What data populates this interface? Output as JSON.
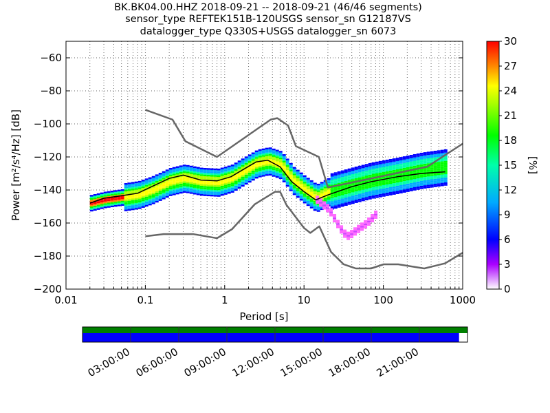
{
  "title": {
    "line1": "BK.BK04.00.HHZ   2018-09-21 -- 2018-09-21  (46/46 segments)",
    "line2": "sensor_type REFTEK151B-120USGS sensor_sn G12187VS",
    "line3": "datalogger_type Q330S+USGS datalogger_sn 6073"
  },
  "chart_data": {
    "type": "heatmap",
    "xlabel": "Period [s]",
    "ylabel": "Power [m²/s⁴/Hz] [dB]",
    "x_scale": "log",
    "xlim": [
      0.01,
      1000
    ],
    "ylim": [
      -200,
      -50
    ],
    "x_ticks": [
      0.01,
      0.1,
      1,
      10,
      100,
      1000
    ],
    "x_tick_labels": [
      "0.01",
      "0.1",
      "1",
      "10",
      "100",
      "1000"
    ],
    "y_ticks": [
      -200,
      -180,
      -160,
      -140,
      -120,
      -100,
      -80,
      -60
    ],
    "grid": true,
    "colorbar": {
      "label": "[%]",
      "range": [
        0,
        30
      ],
      "ticks": [
        0,
        3,
        6,
        9,
        12,
        15,
        18,
        21,
        24,
        27,
        30
      ]
    },
    "noise_models": [
      {
        "name": "NHNM",
        "points": [
          [
            0.1,
            -91.5
          ],
          [
            0.22,
            -97.4
          ],
          [
            0.32,
            -110.5
          ],
          [
            0.8,
            -120
          ],
          [
            3.8,
            -97.4
          ],
          [
            4.6,
            -96.5
          ],
          [
            6.3,
            -101
          ],
          [
            7.9,
            -113.5
          ],
          [
            15.4,
            -120
          ],
          [
            20,
            -138.5
          ],
          [
            354.8,
            -126
          ],
          [
            1000,
            -112
          ]
        ]
      },
      {
        "name": "NLNM",
        "points": [
          [
            0.1,
            -168
          ],
          [
            0.17,
            -166.7
          ],
          [
            0.4,
            -166.7
          ],
          [
            0.8,
            -169.2
          ],
          [
            1.24,
            -163.7
          ],
          [
            2.4,
            -148.6
          ],
          [
            4.3,
            -141.1
          ],
          [
            5,
            -141.1
          ],
          [
            6,
            -149
          ],
          [
            10,
            -163
          ],
          [
            12,
            -166
          ],
          [
            15.6,
            -162
          ],
          [
            21.9,
            -177.5
          ],
          [
            31.6,
            -185
          ],
          [
            45,
            -187.5
          ],
          [
            70,
            -187.5
          ],
          [
            101,
            -185
          ],
          [
            154,
            -185
          ],
          [
            328,
            -187.5
          ],
          [
            600,
            -184.4
          ],
          [
            1000,
            -178
          ]
        ]
      }
    ],
    "mean_curve": [
      [
        0.02,
        -148
      ],
      [
        0.03,
        -145
      ],
      [
        0.05,
        -143.5
      ],
      [
        0.08,
        -142
      ],
      [
        0.12,
        -138
      ],
      [
        0.2,
        -133
      ],
      [
        0.3,
        -131
      ],
      [
        0.5,
        -134
      ],
      [
        0.8,
        -134.5
      ],
      [
        1.2,
        -132
      ],
      [
        1.8,
        -127
      ],
      [
        2.5,
        -123
      ],
      [
        3.5,
        -122
      ],
      [
        5,
        -126
      ],
      [
        7,
        -135
      ],
      [
        10,
        -141
      ],
      [
        14,
        -146
      ],
      [
        20,
        -143
      ],
      [
        40,
        -138
      ],
      [
        70,
        -135
      ],
      [
        150,
        -132
      ],
      [
        300,
        -130
      ],
      [
        600,
        -129
      ]
    ],
    "mode_curve": [
      [
        0.02,
        -148
      ],
      [
        0.03,
        -146
      ],
      [
        0.05,
        -144.5
      ],
      [
        0.08,
        -143
      ],
      [
        0.12,
        -140
      ],
      [
        0.2,
        -135
      ],
      [
        0.3,
        -133
      ],
      [
        0.5,
        -135
      ],
      [
        0.8,
        -135.5
      ],
      [
        1.2,
        -133
      ],
      [
        1.8,
        -128
      ],
      [
        2.5,
        -124
      ],
      [
        3.5,
        -122.5
      ],
      [
        5,
        -125
      ],
      [
        7,
        -134
      ],
      [
        10,
        -140
      ],
      [
        14,
        -145
      ],
      [
        20,
        -141
      ],
      [
        40,
        -137
      ],
      [
        70,
        -134
      ],
      [
        150,
        -131
      ],
      [
        300,
        -128
      ],
      [
        600,
        -126
      ]
    ],
    "secondary_branch": [
      [
        14,
        -146
      ],
      [
        20,
        -152
      ],
      [
        25,
        -160
      ],
      [
        30,
        -166
      ],
      [
        35,
        -168
      ],
      [
        45,
        -164
      ],
      [
        60,
        -160
      ],
      [
        80,
        -154
      ]
    ],
    "time_bar": {
      "tick_labels": [
        "03:00:00",
        "06:00:00",
        "09:00:00",
        "12:00:00",
        "15:00:00",
        "18:00:00",
        "21:00:00"
      ],
      "coverage_fraction": 0.978,
      "colors": {
        "top": "#008000",
        "bottom": "#0000ff"
      }
    }
  }
}
